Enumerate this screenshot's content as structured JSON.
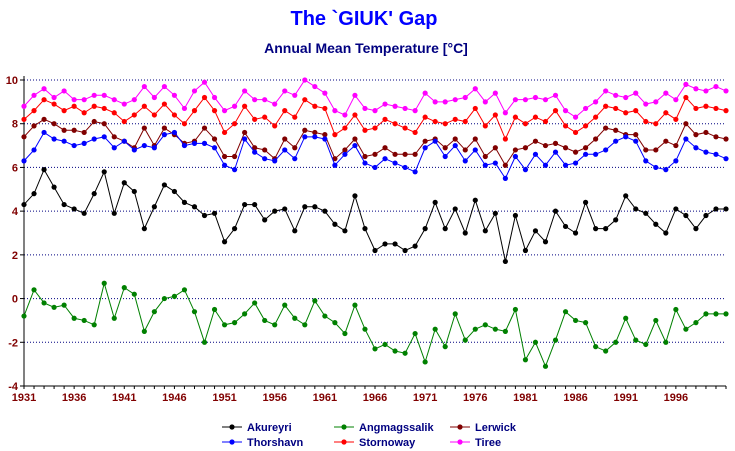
{
  "chart_data": {
    "type": "line",
    "title": "The `GIUK' Gap",
    "subtitle": "Annual Mean Temperature [°C]",
    "x": [
      1931,
      1932,
      1933,
      1934,
      1935,
      1936,
      1937,
      1938,
      1939,
      1940,
      1941,
      1942,
      1943,
      1944,
      1945,
      1946,
      1947,
      1948,
      1949,
      1950,
      1951,
      1952,
      1953,
      1954,
      1955,
      1956,
      1957,
      1958,
      1959,
      1960,
      1961,
      1962,
      1963,
      1964,
      1965,
      1966,
      1967,
      1968,
      1969,
      1970,
      1971,
      1972,
      1973,
      1974,
      1975,
      1976,
      1977,
      1978,
      1979,
      1980,
      1981,
      1982,
      1983,
      1984,
      1985,
      1986,
      1987,
      1988,
      1989,
      1990,
      1991,
      1992,
      1993,
      1994,
      1995,
      1996,
      1997,
      1998,
      1999,
      2000,
      2001
    ],
    "xlim": [
      1931,
      2001
    ],
    "ylim": [
      -4,
      10
    ],
    "x_ticks": [
      "1931",
      "1936",
      "1941",
      "1946",
      "1951",
      "1956",
      "1961",
      "1966",
      "1971",
      "1976",
      "1981",
      "1986",
      "1991",
      "1996"
    ],
    "y_ticks": [
      "10",
      "8",
      "6",
      "4",
      "2",
      "0",
      "-2",
      "-4"
    ],
    "grid": true,
    "legend_position": "bottom",
    "series": [
      {
        "name": "Akureyri",
        "color": "#000000",
        "values": [
          4.3,
          4.8,
          5.9,
          5.1,
          4.3,
          4.1,
          3.9,
          4.8,
          5.8,
          3.9,
          5.3,
          4.9,
          3.2,
          4.2,
          5.2,
          4.9,
          4.4,
          4.2,
          3.8,
          3.9,
          2.6,
          3.2,
          4.3,
          4.3,
          3.6,
          4.0,
          4.1,
          3.1,
          4.2,
          4.2,
          4.0,
          3.4,
          3.1,
          4.7,
          3.2,
          2.2,
          2.5,
          2.5,
          2.2,
          2.4,
          3.2,
          4.4,
          3.2,
          4.1,
          3.0,
          4.5,
          3.1,
          3.9,
          1.7,
          3.8,
          2.2,
          3.1,
          2.6,
          4.0,
          3.3,
          3.0,
          4.4,
          3.2,
          3.2,
          3.6,
          4.7,
          4.1,
          3.9,
          3.4,
          3.0,
          4.1,
          3.8,
          3.2,
          3.8,
          4.1,
          4.1
        ]
      },
      {
        "name": "Angmagssalik",
        "color": "#008000",
        "values": [
          -0.8,
          0.4,
          -0.2,
          -0.4,
          -0.3,
          -0.9,
          -1.0,
          -1.2,
          0.7,
          -0.9,
          0.5,
          0.2,
          -1.5,
          -0.6,
          0.0,
          0.1,
          0.4,
          -0.6,
          -2.0,
          -0.5,
          -1.2,
          -1.1,
          -0.7,
          -0.2,
          -1.0,
          -1.2,
          -0.3,
          -0.9,
          -1.2,
          -0.1,
          -0.8,
          -1.1,
          -1.6,
          -0.3,
          -1.4,
          -2.3,
          -2.1,
          -2.4,
          -2.5,
          -1.6,
          -2.9,
          -1.4,
          -2.2,
          -0.7,
          -1.9,
          -1.4,
          -1.2,
          -1.4,
          -1.5,
          -0.5,
          -2.8,
          -2.0,
          -3.1,
          -1.9,
          -0.6,
          -1.0,
          -1.1,
          -2.2,
          -2.4,
          -2.0,
          -0.9,
          -1.9,
          -2.1,
          -1.0,
          -2.0,
          -0.5,
          -1.4,
          -1.1,
          -0.7,
          -0.7,
          -0.7
        ]
      },
      {
        "name": "Lerwick",
        "color": "#800000",
        "values": [
          7.4,
          7.9,
          8.2,
          8.0,
          7.7,
          7.7,
          7.6,
          8.1,
          8.0,
          7.4,
          7.2,
          6.9,
          7.8,
          7.0,
          7.8,
          7.5,
          7.1,
          7.2,
          7.8,
          7.3,
          6.5,
          6.5,
          7.6,
          6.9,
          6.8,
          6.4,
          7.3,
          6.9,
          7.7,
          7.6,
          7.5,
          6.4,
          6.8,
          7.3,
          6.5,
          6.6,
          6.9,
          6.6,
          6.6,
          6.6,
          7.2,
          7.3,
          6.9,
          7.3,
          6.8,
          7.3,
          6.5,
          6.9,
          6.1,
          6.8,
          6.9,
          7.2,
          7.0,
          7.1,
          6.9,
          6.7,
          6.9,
          7.3,
          7.8,
          7.7,
          7.5,
          7.5,
          6.8,
          6.8,
          7.2,
          7.0,
          8.0,
          7.5,
          7.6,
          7.4,
          7.3
        ]
      },
      {
        "name": "Thorshavn",
        "color": "#0000ff",
        "values": [
          6.3,
          6.8,
          7.6,
          7.3,
          7.2,
          7.0,
          7.1,
          7.3,
          7.4,
          6.9,
          7.2,
          6.8,
          7.0,
          6.9,
          7.5,
          7.6,
          7.0,
          7.1,
          7.1,
          6.9,
          6.1,
          5.9,
          7.3,
          6.7,
          6.4,
          6.3,
          6.8,
          6.4,
          7.4,
          7.4,
          7.3,
          6.1,
          6.6,
          7.0,
          6.2,
          6.0,
          6.4,
          6.2,
          6.0,
          5.8,
          6.9,
          7.2,
          6.5,
          7.0,
          6.3,
          6.8,
          6.1,
          6.2,
          5.5,
          6.5,
          5.9,
          6.6,
          6.1,
          6.7,
          6.1,
          6.2,
          6.6,
          6.6,
          6.8,
          7.2,
          7.4,
          7.2,
          6.3,
          6.0,
          5.9,
          6.3,
          7.3,
          6.9,
          6.7,
          6.6,
          6.4
        ]
      },
      {
        "name": "Stornoway",
        "color": "#ff0000",
        "values": [
          8.2,
          8.6,
          9.1,
          8.9,
          8.6,
          8.8,
          8.5,
          8.8,
          8.7,
          8.5,
          8.1,
          8.4,
          8.8,
          8.4,
          8.9,
          8.4,
          8.0,
          8.6,
          9.2,
          8.6,
          7.6,
          8.0,
          8.8,
          8.2,
          8.3,
          7.9,
          8.6,
          8.3,
          9.1,
          8.8,
          8.7,
          7.5,
          7.8,
          8.4,
          7.7,
          7.8,
          8.2,
          8.0,
          7.8,
          7.6,
          8.3,
          8.1,
          8.0,
          8.2,
          8.1,
          8.7,
          7.9,
          8.4,
          7.3,
          8.3,
          8.0,
          8.3,
          8.1,
          8.6,
          7.9,
          7.6,
          7.9,
          8.3,
          8.8,
          8.7,
          8.5,
          8.6,
          8.1,
          8.0,
          8.5,
          8.2,
          9.2,
          8.7,
          8.8,
          8.7,
          8.6
        ]
      },
      {
        "name": "Tiree",
        "color": "#ff00ff",
        "values": [
          8.8,
          9.3,
          9.6,
          9.2,
          9.5,
          9.1,
          9.1,
          9.3,
          9.3,
          9.1,
          8.9,
          9.1,
          9.7,
          9.2,
          9.7,
          9.3,
          8.7,
          9.5,
          9.9,
          9.2,
          8.6,
          8.8,
          9.5,
          9.1,
          9.1,
          8.9,
          9.5,
          9.3,
          10.0,
          9.7,
          9.4,
          8.6,
          8.4,
          9.3,
          8.7,
          8.6,
          8.9,
          8.8,
          8.7,
          8.6,
          9.4,
          9.0,
          9.0,
          9.1,
          9.2,
          9.6,
          9.0,
          9.4,
          8.5,
          9.1,
          9.1,
          9.2,
          9.1,
          9.3,
          8.6,
          8.3,
          8.7,
          9.0,
          9.5,
          9.3,
          9.2,
          9.4,
          8.9,
          9.0,
          9.4,
          9.1,
          9.8,
          9.6,
          9.5,
          9.7,
          9.5
        ]
      }
    ]
  }
}
